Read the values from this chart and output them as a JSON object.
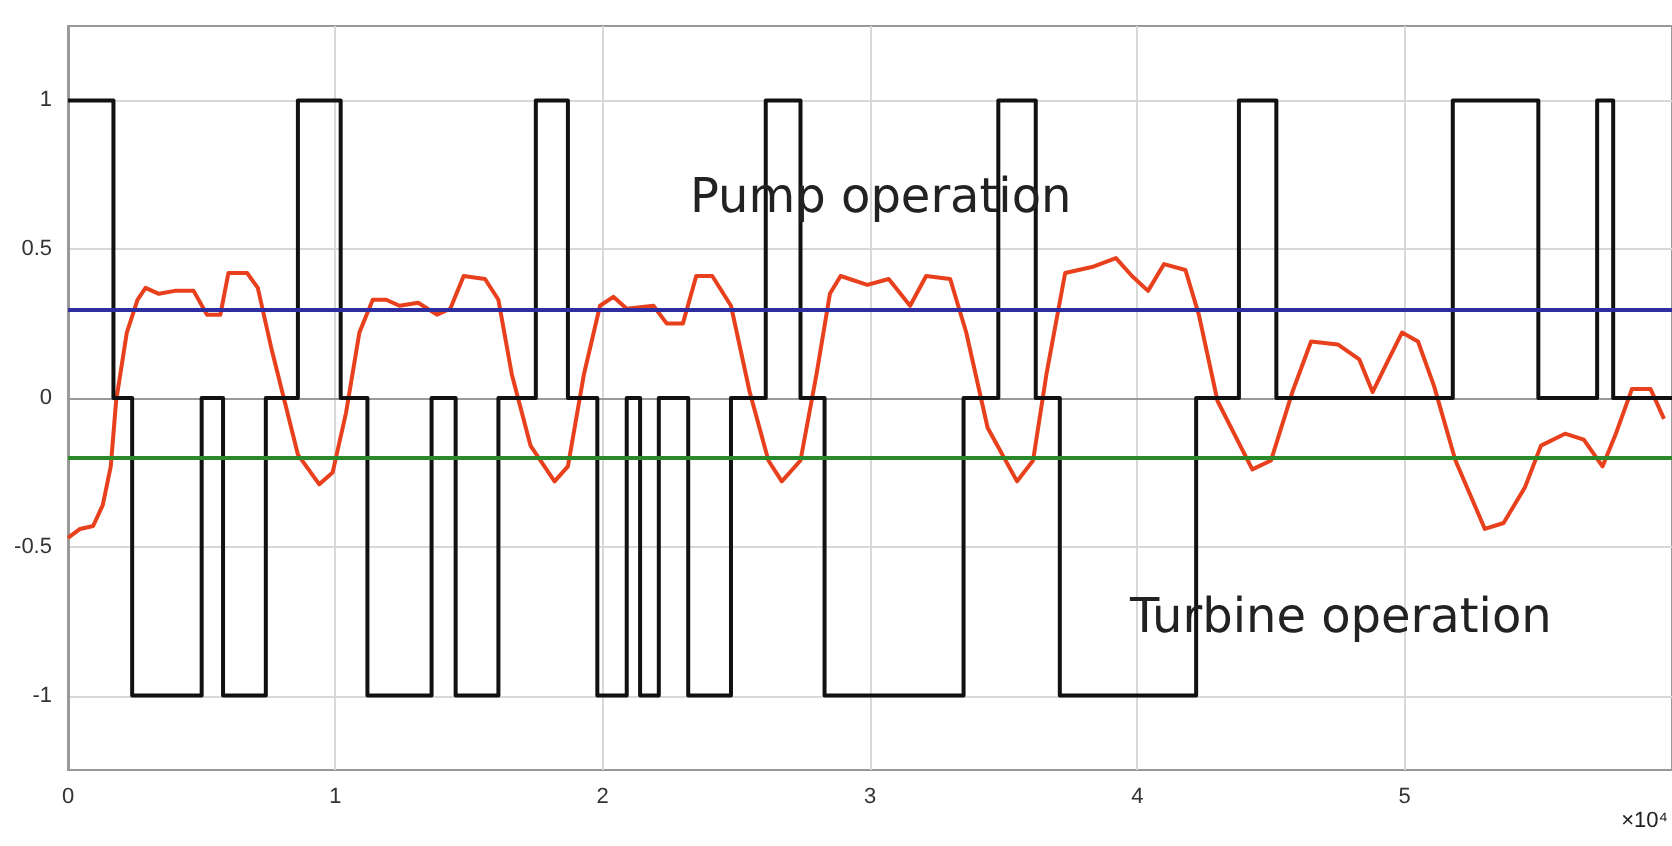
{
  "chart_data": {
    "type": "line",
    "xlim": [
      0,
      6
    ],
    "xticks": [
      0,
      1,
      2,
      3,
      4,
      5
    ],
    "ylim": [
      -1.25,
      1.25
    ],
    "yticks": [
      -1,
      -0.5,
      0,
      0.5,
      1
    ],
    "grid": true,
    "marker": "none",
    "line_style": "solid",
    "series": [
      {
        "type": "step",
        "color": "#111111",
        "x": [
          0,
          0.17,
          0.24,
          0.5,
          0.58,
          0.74,
          0.86,
          1.02,
          1.12,
          1.36,
          1.45,
          1.61,
          1.75,
          1.87,
          1.98,
          2.09,
          2.14,
          2.21,
          2.32,
          2.48,
          2.61,
          2.74,
          2.83,
          3.35,
          3.48,
          3.62,
          3.71,
          4.22,
          4.38,
          4.52,
          5.18,
          5.5,
          5.72,
          5.78,
          6
        ],
        "values": [
          1,
          0,
          -1,
          0,
          -1,
          0,
          1,
          0,
          -1,
          0,
          -1,
          0,
          1,
          0,
          -1,
          0,
          -1,
          0,
          -1,
          0,
          1,
          0,
          -1,
          0,
          1,
          0,
          -1,
          0,
          1,
          0,
          1,
          0,
          1,
          0,
          0
        ]
      },
      {
        "color": "#e8401c",
        "x": [
          0,
          0.045,
          0.094,
          0.13,
          0.16,
          0.18,
          0.22,
          0.26,
          0.29,
          0.34,
          0.4,
          0.47,
          0.52,
          0.57,
          0.6,
          0.67,
          0.71,
          0.76,
          0.81,
          0.86,
          0.94,
          0.99,
          1.04,
          1.09,
          1.14,
          1.19,
          1.24,
          1.31,
          1.38,
          1.43,
          1.48,
          1.56,
          1.61,
          1.66,
          1.73,
          1.82,
          1.87,
          1.93,
          1.99,
          2.04,
          2.09,
          2.19,
          2.24,
          2.3,
          2.35,
          2.41,
          2.48,
          2.55,
          2.62,
          2.67,
          2.74,
          2.8,
          2.85,
          2.89,
          2.99,
          3.07,
          3.15,
          3.21,
          3.3,
          3.36,
          3.44,
          3.55,
          3.61,
          3.66,
          3.73,
          3.83,
          3.92,
          3.98,
          4.04,
          4.1,
          4.18,
          4.23,
          4.3,
          4.43,
          4.5,
          4.58,
          4.65,
          4.75,
          4.83,
          4.88,
          4.94,
          4.99,
          5.05,
          5.11,
          5.19,
          5.3,
          5.37,
          5.45,
          5.51,
          5.6,
          5.67,
          5.74,
          5.79,
          5.85,
          5.92,
          5.97
        ],
        "values": [
          -0.47,
          -0.44,
          -0.43,
          -0.36,
          -0.23,
          -0.01,
          0.22,
          0.33,
          0.37,
          0.35,
          0.36,
          0.36,
          0.28,
          0.28,
          0.42,
          0.42,
          0.37,
          0.17,
          -0.01,
          -0.19,
          -0.29,
          -0.25,
          -0.05,
          0.22,
          0.33,
          0.33,
          0.31,
          0.32,
          0.28,
          0.3,
          0.41,
          0.4,
          0.33,
          0.08,
          -0.16,
          -0.28,
          -0.23,
          0.08,
          0.31,
          0.34,
          0.3,
          0.31,
          0.25,
          0.25,
          0.41,
          0.41,
          0.31,
          0.02,
          -0.21,
          -0.28,
          -0.21,
          0.08,
          0.35,
          0.41,
          0.38,
          0.4,
          0.31,
          0.41,
          0.4,
          0.22,
          -0.1,
          -0.28,
          -0.21,
          0.08,
          0.42,
          0.44,
          0.47,
          0.41,
          0.36,
          0.45,
          0.43,
          0.28,
          -0.01,
          -0.24,
          -0.21,
          0.02,
          0.19,
          0.18,
          0.13,
          0.02,
          0.13,
          0.22,
          0.19,
          0.04,
          -0.21,
          -0.44,
          -0.42,
          -0.3,
          -0.16,
          -0.12,
          -0.14,
          -0.23,
          -0.12,
          0.03,
          0.03,
          -0.07
        ]
      }
    ],
    "ref_lines": [
      {
        "axis": "y",
        "value": 0.3,
        "color": "#2e2ea0"
      },
      {
        "axis": "y",
        "value": -0.2,
        "color": "#2a8a2a"
      }
    ],
    "annotations": [
      "Pump operation",
      "Turbine operation",
      "×10⁴"
    ]
  }
}
